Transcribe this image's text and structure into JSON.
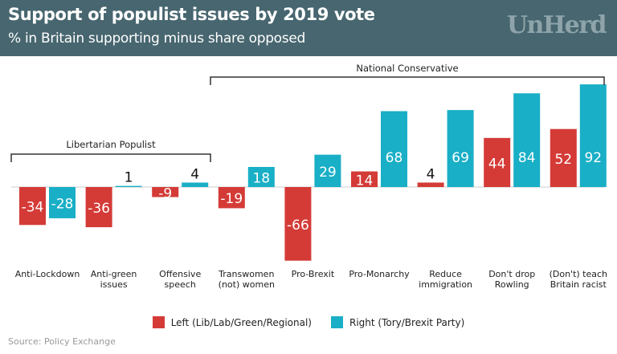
{
  "header": {
    "title": "Support of populist issues by 2019 vote",
    "subtitle": "% in Britain supporting minus share opposed",
    "logo": "UnHerd"
  },
  "chart_data": {
    "type": "bar",
    "categories": [
      [
        "Anti-Lockdown"
      ],
      [
        "Anti-green",
        "issues"
      ],
      [
        "Offensive",
        "speech"
      ],
      [
        "Transwomen",
        "(not) women"
      ],
      [
        "Pro-Brexit"
      ],
      [
        "Pro-Monarchy"
      ],
      [
        "Reduce",
        "immigration"
      ],
      [
        "Don't drop",
        "Rowling"
      ],
      [
        "(Don't) teach",
        "Britain racist"
      ]
    ],
    "series": [
      {
        "name": "Left (Lib/Lab/Green/Regional)",
        "color": "#d43b37",
        "values": [
          -34,
          -36,
          -9,
          -19,
          -66,
          14,
          4,
          44,
          52
        ]
      },
      {
        "name": "Right (Tory/Brexit Party)",
        "color": "#19afc6",
        "values": [
          -28,
          1,
          4,
          18,
          29,
          68,
          69,
          84,
          92
        ]
      }
    ],
    "groups": [
      {
        "label": "Libertarian Populist",
        "from": 0,
        "to": 2
      },
      {
        "label": "National Conservative",
        "from": 3,
        "to": 8
      }
    ],
    "ylim": [
      -70,
      95
    ],
    "grid": false,
    "legend_position": "bottom"
  },
  "source": "Source: Policy Exchange"
}
